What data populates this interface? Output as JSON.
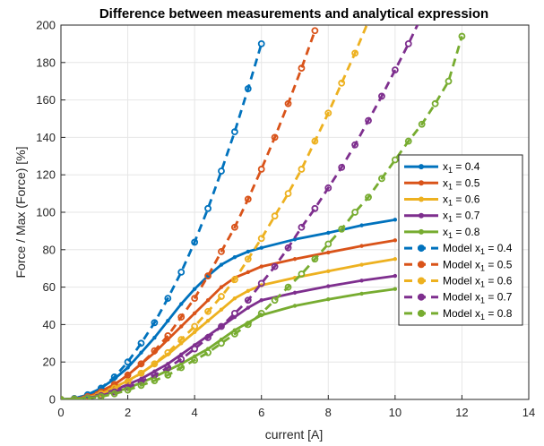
{
  "chart_data": {
    "type": "line",
    "title": "Difference   between measurements and analytical expression",
    "xlabel": "current [A]",
    "ylabel": "Force / Max (Force) [%]",
    "xlim": [
      0,
      14
    ],
    "ylim": [
      0,
      200
    ],
    "xticks": [
      0,
      2,
      4,
      6,
      8,
      10,
      12,
      14
    ],
    "yticks": [
      0,
      20,
      40,
      60,
      80,
      100,
      120,
      140,
      160,
      180,
      200
    ],
    "grid": true,
    "legend_position": "right",
    "series": [
      {
        "name": "x1 = 0.4",
        "legend_main": "x",
        "legend_sub": "1",
        "legend_tail": " = 0.4",
        "color": "#0072BD",
        "style": "solid",
        "marker": "filled-dot",
        "x": [
          0,
          0.4,
          0.8,
          1.2,
          1.6,
          2.0,
          2.4,
          2.8,
          3.2,
          3.6,
          4.0,
          4.4,
          4.8,
          5.2,
          5.6,
          6.0,
          7.0,
          8.0,
          9.0,
          10.0
        ],
        "y": [
          0,
          0.5,
          2.5,
          6,
          11,
          17,
          25,
          33,
          42,
          51,
          59,
          66,
          72,
          76,
          79,
          81,
          85.5,
          89,
          93,
          96
        ]
      },
      {
        "name": "x1 = 0.5",
        "legend_main": "x",
        "legend_sub": "1",
        "legend_tail": " = 0.5",
        "color": "#D95319",
        "style": "solid",
        "marker": "filled-dot",
        "x": [
          0,
          0.4,
          0.8,
          1.2,
          1.6,
          2.0,
          2.4,
          2.8,
          3.2,
          3.6,
          4.0,
          4.4,
          4.8,
          5.2,
          5.6,
          6.0,
          7.0,
          8.0,
          9.0,
          10.0
        ],
        "y": [
          0,
          0.3,
          2,
          4.5,
          8,
          13,
          19,
          25,
          32,
          39,
          46,
          53,
          60,
          65,
          68,
          71,
          75,
          78.5,
          82,
          85
        ]
      },
      {
        "name": "x1 = 0.6",
        "legend_main": "x",
        "legend_sub": "1",
        "legend_tail": " = 0.6",
        "color": "#EDB120",
        "style": "solid",
        "marker": "filled-dot",
        "x": [
          0,
          0.4,
          0.8,
          1.2,
          1.6,
          2.0,
          2.4,
          2.8,
          3.2,
          3.6,
          4.0,
          4.4,
          4.8,
          5.2,
          5.6,
          6.0,
          7.0,
          8.0,
          9.0,
          10.0
        ],
        "y": [
          0,
          0.2,
          1.5,
          3.5,
          6.5,
          10,
          14,
          19,
          24,
          30,
          36,
          42,
          48,
          54,
          58,
          61,
          65,
          68.5,
          72,
          75
        ]
      },
      {
        "name": "x1 = 0.7",
        "legend_main": "x",
        "legend_sub": "1",
        "legend_tail": " = 0.7",
        "color": "#7E2F8E",
        "style": "solid",
        "marker": "filled-dot",
        "x": [
          0,
          0.4,
          0.8,
          1.2,
          1.6,
          2.0,
          2.4,
          2.8,
          3.2,
          3.6,
          4.0,
          4.4,
          4.8,
          5.2,
          5.6,
          6.0,
          7.0,
          8.0,
          9.0,
          10.0
        ],
        "y": [
          0,
          0.2,
          1.2,
          2.8,
          5,
          8,
          11,
          15,
          19,
          24,
          29,
          34,
          39,
          44,
          49,
          53,
          57,
          60.5,
          63.5,
          66
        ]
      },
      {
        "name": "x1 = 0.8",
        "legend_main": "x",
        "legend_sub": "1",
        "legend_tail": " = 0.8",
        "color": "#77AC30",
        "style": "solid",
        "marker": "filled-dot",
        "x": [
          0,
          0.4,
          0.8,
          1.2,
          1.6,
          2.0,
          2.4,
          2.8,
          3.2,
          3.6,
          4.0,
          4.4,
          4.8,
          5.2,
          5.6,
          6.0,
          7.0,
          8.0,
          9.0,
          10.0
        ],
        "y": [
          0,
          0.2,
          1,
          2.2,
          4,
          6,
          9,
          12,
          15.5,
          19,
          23,
          27,
          32,
          37,
          41,
          45,
          50,
          53.5,
          56.5,
          59
        ]
      },
      {
        "name": "Model x1 = 0.4",
        "legend_main": "Model x",
        "legend_sub": "1",
        "legend_tail": " = 0.4",
        "color": "#0072BD",
        "style": "dashed",
        "marker": "open-circle",
        "x": [
          0,
          0.4,
          0.8,
          1.2,
          1.6,
          2.0,
          2.4,
          2.8,
          3.2,
          3.6,
          4.0,
          4.4,
          4.8,
          5.2,
          5.6,
          6.0
        ],
        "y": [
          0,
          0.5,
          2.5,
          6,
          12,
          20,
          30,
          41,
          54,
          68,
          84,
          102,
          122,
          143,
          166,
          190
        ]
      },
      {
        "name": "Model x1 = 0.5",
        "legend_main": "Model x",
        "legend_sub": "1",
        "legend_tail": " = 0.5",
        "color": "#D95319",
        "style": "dashed",
        "marker": "open-circle",
        "x": [
          0,
          0.4,
          0.8,
          1.2,
          1.6,
          2.0,
          2.4,
          2.8,
          3.2,
          3.6,
          4.0,
          4.4,
          4.8,
          5.2,
          5.6,
          6.0,
          6.4,
          6.8,
          7.2,
          7.6
        ],
        "y": [
          0,
          0.3,
          1.5,
          4,
          8,
          13,
          19,
          26,
          34,
          44,
          54,
          66,
          79,
          92,
          107,
          123,
          140,
          158,
          177,
          197
        ]
      },
      {
        "name": "Model x1 = 0.6",
        "legend_main": "Model x",
        "legend_sub": "1",
        "legend_tail": " = 0.6",
        "color": "#EDB120",
        "style": "dashed",
        "marker": "open-circle",
        "x": [
          0,
          0.4,
          0.8,
          1.2,
          1.6,
          2.0,
          2.4,
          2.8,
          3.2,
          3.6,
          4.0,
          4.4,
          4.8,
          5.2,
          5.6,
          6.0,
          6.4,
          6.8,
          7.2,
          7.6,
          8.0,
          8.4,
          8.8,
          9.2
        ],
        "y": [
          0,
          0.2,
          1,
          3,
          6,
          9.5,
          14,
          19,
          25,
          32,
          39,
          47,
          55,
          64,
          75,
          86,
          98,
          110,
          123,
          138,
          153,
          169,
          185,
          202
        ]
      },
      {
        "name": "Model x1 = 0.7",
        "legend_main": "Model x",
        "legend_sub": "1",
        "legend_tail": " = 0.7",
        "color": "#7E2F8E",
        "style": "dashed",
        "marker": "open-circle",
        "x": [
          0,
          0.4,
          0.8,
          1.2,
          1.6,
          2.0,
          2.4,
          2.8,
          3.2,
          3.6,
          4.0,
          4.4,
          4.8,
          5.2,
          5.6,
          6.0,
          6.4,
          6.8,
          7.2,
          7.6,
          8.0,
          8.4,
          8.8,
          9.2,
          9.6,
          10.0,
          10.4,
          10.8
        ],
        "y": [
          0,
          0.2,
          0.8,
          2,
          4,
          6.5,
          9.5,
          13,
          17,
          21.5,
          27,
          33,
          39,
          46,
          53,
          62,
          71,
          81,
          92,
          102,
          113,
          124,
          136,
          149,
          162,
          176,
          190,
          205
        ]
      },
      {
        "name": "Model x1 = 0.8",
        "legend_main": "Model x",
        "legend_sub": "1",
        "legend_tail": " = 0.8",
        "color": "#77AC30",
        "style": "dashed",
        "marker": "open-circle",
        "x": [
          0,
          0.4,
          0.8,
          1.2,
          1.6,
          2.0,
          2.4,
          2.8,
          3.2,
          3.6,
          4.0,
          4.4,
          4.8,
          5.2,
          5.6,
          6.0,
          6.4,
          6.8,
          7.2,
          7.6,
          8.0,
          8.4,
          8.8,
          9.2,
          9.6,
          10.0,
          10.4,
          10.8,
          11.2,
          11.6,
          12.0
        ],
        "y": [
          0,
          0.2,
          0.6,
          1.5,
          3,
          5,
          7.5,
          10,
          13,
          17,
          21,
          25,
          30,
          35,
          40,
          46,
          53,
          60,
          67,
          75,
          83,
          91,
          100,
          108,
          118,
          128,
          138,
          147,
          158,
          170,
          194
        ]
      }
    ]
  }
}
